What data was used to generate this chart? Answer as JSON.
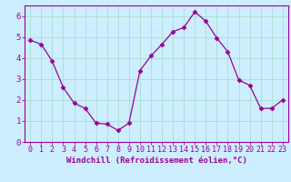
{
  "x": [
    0,
    1,
    2,
    3,
    4,
    5,
    6,
    7,
    8,
    9,
    10,
    11,
    12,
    13,
    14,
    15,
    16,
    17,
    18,
    19,
    20,
    21,
    22,
    23
  ],
  "y": [
    4.85,
    4.65,
    3.85,
    2.6,
    1.85,
    1.6,
    0.9,
    0.85,
    0.55,
    0.9,
    3.4,
    4.1,
    4.65,
    5.25,
    5.45,
    6.2,
    5.75,
    4.95,
    4.3,
    2.95,
    2.7,
    1.6,
    1.6,
    2.0
  ],
  "line_color": "#990099",
  "marker": "D",
  "markersize": 2.5,
  "linewidth": 0.9,
  "xlabel": "Windchill (Refroidissement éolien,°C)",
  "ylabel": "",
  "xlim": [
    -0.5,
    23.5
  ],
  "ylim": [
    0,
    6.5
  ],
  "yticks": [
    0,
    1,
    2,
    3,
    4,
    5,
    6
  ],
  "xticks": [
    0,
    1,
    2,
    3,
    4,
    5,
    6,
    7,
    8,
    9,
    10,
    11,
    12,
    13,
    14,
    15,
    16,
    17,
    18,
    19,
    20,
    21,
    22,
    23
  ],
  "bg_color": "#cceeff",
  "grid_color": "#aaddcc",
  "tick_color": "#990099",
  "label_color": "#990099",
  "xlabel_fontsize": 6.5,
  "tick_fontsize": 6.0
}
